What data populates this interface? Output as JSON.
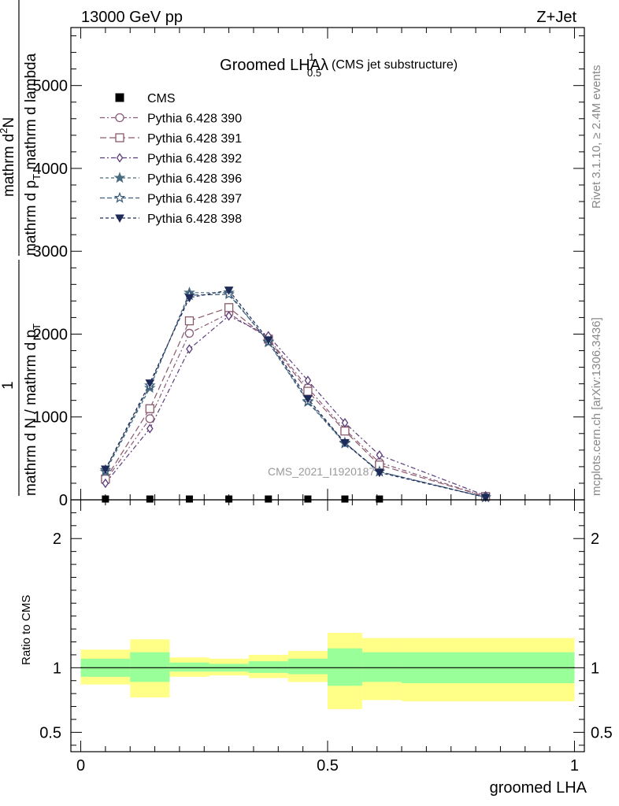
{
  "header": {
    "left": "13000 GeV pp",
    "right": "Z+Jet"
  },
  "side_labels": {
    "rivet": "Rivet 3.1.10, ≥ 2.4M events",
    "mcplots": "mcplots.cern.ch [arXiv:1306.3436]"
  },
  "chart_data": [
    {
      "type": "line",
      "title_main": "Groomed LHA",
      "title_lambda": "λ",
      "title_sup": "1",
      "title_sub": "0.5",
      "title_note": "(CMS jet substructure)",
      "watermark": "CMS_2021_I1920187",
      "ylabel_num_top": "mathrm d",
      "ylabel_num_sup": "2",
      "ylabel_num_rest": "N",
      "ylabel_den_top": "mathrm d p",
      "ylabel_den_sub": "T",
      "ylabel_den_rest": " mathrm d lambda",
      "ylabel_frac_num": "1",
      "ylabel_frac_den": "mathrm d N / mathrm d p",
      "ylabel_frac_den_sub": "T",
      "xlim": [
        -0.02,
        1.02
      ],
      "ylim": [
        0,
        5700
      ],
      "yticks": [
        {
          "v": 0,
          "label": "0"
        },
        {
          "v": 1000,
          "label": "1000"
        },
        {
          "v": 2000,
          "label": "2000"
        },
        {
          "v": 3000,
          "label": "3000"
        },
        {
          "v": 4000,
          "label": "4000"
        },
        {
          "v": 5000,
          "label": "5000"
        }
      ],
      "legend": {
        "placement": "top-left"
      },
      "cms": {
        "name": "CMS",
        "x": [
          0.05,
          0.14,
          0.22,
          0.3,
          0.38,
          0.46,
          0.535,
          0.605
        ],
        "y": [
          0,
          0,
          0,
          0,
          0,
          0,
          0,
          0
        ]
      },
      "series": [
        {
          "name": "Pythia 6.428 390",
          "color": "#8a5a7a",
          "marker": "circle-open",
          "dash": "6,3,2,3",
          "x": [
            0.05,
            0.14,
            0.22,
            0.3,
            0.38,
            0.46,
            0.535,
            0.605,
            0.82
          ],
          "y": [
            230,
            980,
            2010,
            2250,
            1950,
            1350,
            850,
            450,
            40
          ]
        },
        {
          "name": "Pythia 6.428 391",
          "color": "#8a5a6a",
          "marker": "square-open",
          "dash": "8,4",
          "x": [
            0.05,
            0.14,
            0.22,
            0.3,
            0.38,
            0.46,
            0.535,
            0.605,
            0.82
          ],
          "y": [
            250,
            1100,
            2160,
            2320,
            1940,
            1310,
            830,
            420,
            40
          ]
        },
        {
          "name": "Pythia 6.428 392",
          "color": "#5a3a7a",
          "marker": "diamond-open",
          "dash": "6,3,2,3",
          "x": [
            0.05,
            0.14,
            0.22,
            0.3,
            0.38,
            0.46,
            0.535,
            0.605,
            0.82
          ],
          "y": [
            200,
            860,
            1820,
            2220,
            1980,
            1440,
            930,
            540,
            50
          ]
        },
        {
          "name": "Pythia 6.428 396",
          "color": "#4a6a80",
          "marker": "star-filled",
          "dash": "4,3",
          "x": [
            0.05,
            0.14,
            0.22,
            0.3,
            0.38,
            0.46,
            0.535,
            0.605,
            0.82
          ],
          "y": [
            340,
            1350,
            2500,
            2500,
            1900,
            1180,
            680,
            340,
            30
          ]
        },
        {
          "name": "Pythia 6.428 397",
          "color": "#3a5a78",
          "marker": "star-open",
          "dash": "6,3",
          "x": [
            0.05,
            0.14,
            0.22,
            0.3,
            0.38,
            0.46,
            0.535,
            0.605,
            0.82
          ],
          "y": [
            360,
            1380,
            2470,
            2480,
            1910,
            1190,
            690,
            340,
            30
          ]
        },
        {
          "name": "Pythia 6.428 398",
          "color": "#1e2a58",
          "marker": "triangle-down-filled",
          "dash": "4,3",
          "x": [
            0.05,
            0.14,
            0.22,
            0.3,
            0.38,
            0.46,
            0.535,
            0.605,
            0.82
          ],
          "y": [
            370,
            1410,
            2440,
            2530,
            1930,
            1220,
            690,
            330,
            30
          ]
        }
      ]
    },
    {
      "type": "area",
      "ylabel": "Ratio to CMS",
      "xlabel": "groomed LHA",
      "xlim": [
        -0.02,
        1.02
      ],
      "ylim": [
        0.35,
        2.3
      ],
      "xticks": [
        {
          "v": 0,
          "label": "0"
        },
        {
          "v": 0.5,
          "label": "0.5"
        },
        {
          "v": 1,
          "label": "1"
        }
      ],
      "yticks": [
        {
          "v": 0.5,
          "label": "0.5"
        },
        {
          "v": 1,
          "label": "1"
        },
        {
          "v": 2,
          "label": "2"
        }
      ],
      "bands": [
        {
          "x0": 0.0,
          "x1": 0.1,
          "green": [
            0.93,
            1.07
          ],
          "yellow": [
            0.87,
            1.14
          ]
        },
        {
          "x0": 0.1,
          "x1": 0.18,
          "green": [
            0.89,
            1.12
          ],
          "yellow": [
            0.77,
            1.22
          ]
        },
        {
          "x0": 0.18,
          "x1": 0.26,
          "green": [
            0.97,
            1.04
          ],
          "yellow": [
            0.93,
            1.08
          ]
        },
        {
          "x0": 0.26,
          "x1": 0.34,
          "green": [
            0.97,
            1.03
          ],
          "yellow": [
            0.94,
            1.07
          ]
        },
        {
          "x0": 0.34,
          "x1": 0.42,
          "green": [
            0.96,
            1.05
          ],
          "yellow": [
            0.92,
            1.1
          ]
        },
        {
          "x0": 0.42,
          "x1": 0.5,
          "green": [
            0.95,
            1.07
          ],
          "yellow": [
            0.89,
            1.13
          ]
        },
        {
          "x0": 0.5,
          "x1": 0.57,
          "green": [
            0.86,
            1.15
          ],
          "yellow": [
            0.68,
            1.27
          ]
        },
        {
          "x0": 0.57,
          "x1": 0.65,
          "green": [
            0.89,
            1.12
          ],
          "yellow": [
            0.75,
            1.23
          ]
        },
        {
          "x0": 0.65,
          "x1": 1.0,
          "green": [
            0.88,
            1.12
          ],
          "yellow": [
            0.74,
            1.23
          ]
        }
      ],
      "reference": 1
    }
  ]
}
